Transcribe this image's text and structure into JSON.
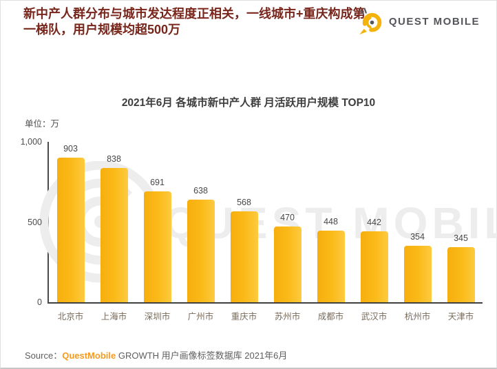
{
  "header": {
    "title": "新中产人群分布与城市发达程度正相关，一线城市+重庆构成第一梯队，用户规模均超500万",
    "title_color": "#78261B",
    "logo_text": "QUEST MOBILE"
  },
  "watermark": {
    "text": "QUEST MOBILE"
  },
  "chart_data": {
    "type": "bar",
    "title": "2021年6月 各城市新中产人群 月活跃用户规模 TOP10",
    "unit_label": "单位：万",
    "categories": [
      "北京市",
      "上海市",
      "深圳市",
      "广州市",
      "重庆市",
      "苏州市",
      "成都市",
      "武汉市",
      "杭州市",
      "天津市"
    ],
    "values": [
      903,
      838,
      691,
      638,
      568,
      470,
      448,
      442,
      354,
      345
    ],
    "xlabel": "",
    "ylabel": "",
    "ylim": [
      0,
      1000
    ],
    "yticks": [
      {
        "label": "1,000",
        "value": 1000
      },
      {
        "label": "500",
        "value": 500
      },
      {
        "label": "0",
        "value": 0
      }
    ],
    "grid": false,
    "legend": "none",
    "bar_gradient": [
      "#F6AE0E",
      "#FBBB1A",
      "#FDCA41"
    ]
  },
  "source": {
    "label": "Source：",
    "brand": "QuestMobile",
    "brand_color": "#F79A1F",
    "rest": " GROWTH 用户画像标签数据库 2021年6月"
  }
}
